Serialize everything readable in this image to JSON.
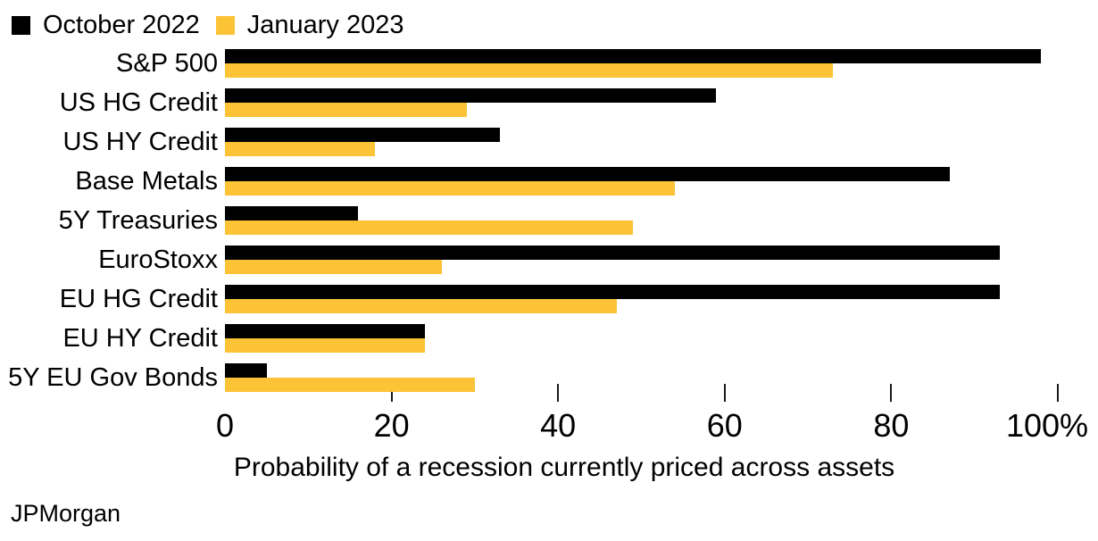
{
  "legend": {
    "items": [
      {
        "label": "October 2022",
        "color": "#000000"
      },
      {
        "label": "January 2023",
        "color": "#FBC335"
      }
    ]
  },
  "chart_data": {
    "type": "bar",
    "orientation": "horizontal",
    "categories": [
      "S&P 500",
      "US HG Credit",
      "US HY Credit",
      "Base Metals",
      "5Y Treasuries",
      "EuroStoxx",
      "EU HG Credit",
      "EU HY Credit",
      "5Y EU Gov Bonds"
    ],
    "series": [
      {
        "name": "October 2022",
        "color": "#000000",
        "values": [
          98,
          59,
          33,
          87,
          16,
          93,
          93,
          24,
          5
        ]
      },
      {
        "name": "January 2023",
        "color": "#FBC335",
        "values": [
          73,
          29,
          18,
          54,
          49,
          26,
          47,
          24,
          30
        ]
      }
    ],
    "xlabel": "Probability of a recession currently priced across assets",
    "xlim": [
      0,
      100
    ],
    "x_ticks": [
      0,
      20,
      40,
      60,
      80,
      100
    ],
    "x_tick_labels": [
      "0",
      "20",
      "40",
      "60",
      "80",
      "100%"
    ],
    "grid": false,
    "legend_position": "top-left",
    "unit": "%"
  },
  "source": "JPMorgan"
}
